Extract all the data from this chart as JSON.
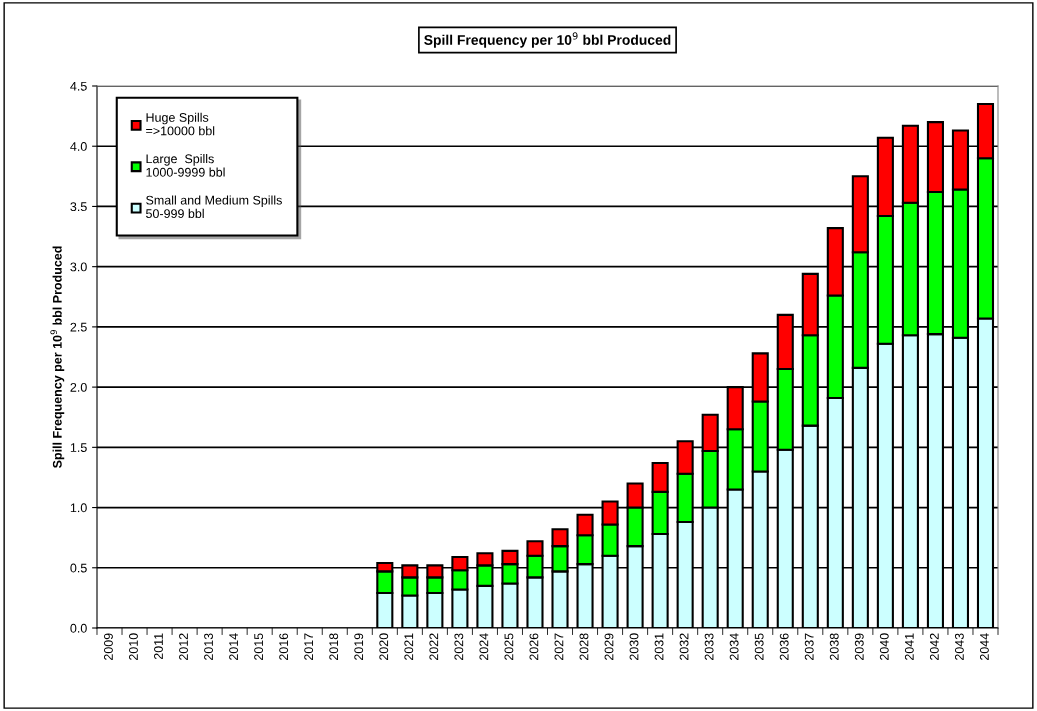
{
  "chart_data": {
    "type": "bar",
    "stacked": true,
    "title": "Spill Frequency per 10$^{9}$ bbl Produced",
    "ylabel": "Spill Frequency per 10$^{9}$ bbl Produced",
    "categories": [
      "2009",
      "2010",
      "2011",
      "2012",
      "2013",
      "2014",
      "2015",
      "2016",
      "2017",
      "2018",
      "2019",
      "2020",
      "2021",
      "2022",
      "2023",
      "2024",
      "2025",
      "2026",
      "2027",
      "2028",
      "2029",
      "2030",
      "2031",
      "2032",
      "2033",
      "2034",
      "2035",
      "2036",
      "2037",
      "2038",
      "2039",
      "2040",
      "2041",
      "2042",
      "2043",
      "2044"
    ],
    "series": [
      {
        "name": "Small and Medium Spills\n50-999 bbl",
        "color": "#ccffff",
        "values": [
          null,
          null,
          null,
          null,
          null,
          null,
          null,
          null,
          null,
          null,
          null,
          0.29,
          0.27,
          0.29,
          0.32,
          0.35,
          0.37,
          0.42,
          0.47,
          0.53,
          0.6,
          0.68,
          0.78,
          0.88,
          1.0,
          1.15,
          1.3,
          1.48,
          1.68,
          1.91,
          2.16,
          2.36,
          2.43,
          2.44,
          2.41,
          2.57
        ]
      },
      {
        "name": "Large  Spills\n1000-9999 bbl",
        "color": "#00ff00",
        "values": [
          null,
          null,
          null,
          null,
          null,
          null,
          null,
          null,
          null,
          null,
          null,
          0.18,
          0.15,
          0.13,
          0.16,
          0.17,
          0.16,
          0.18,
          0.21,
          0.24,
          0.26,
          0.32,
          0.35,
          0.4,
          0.47,
          0.5,
          0.58,
          0.67,
          0.75,
          0.85,
          0.96,
          1.06,
          1.1,
          1.18,
          1.23,
          1.33
        ]
      },
      {
        "name": "Huge Spills\n=>10000 bbl",
        "color": "#ff0000",
        "values": [
          null,
          null,
          null,
          null,
          null,
          null,
          null,
          null,
          null,
          null,
          null,
          0.07,
          0.1,
          0.1,
          0.11,
          0.1,
          0.11,
          0.12,
          0.14,
          0.17,
          0.19,
          0.2,
          0.24,
          0.27,
          0.3,
          0.35,
          0.4,
          0.45,
          0.51,
          0.56,
          0.63,
          0.65,
          0.64,
          0.58,
          0.49,
          0.45
        ]
      }
    ],
    "ylim": [
      0,
      4.5
    ],
    "yticks": [
      {
        "value": 0,
        "label": "0.0"
      },
      {
        "value": 0.5,
        "label": "0.5"
      },
      {
        "value": 1,
        "label": "1.0"
      },
      {
        "value": 1.5,
        "label": "1.5"
      },
      {
        "value": 2,
        "label": "2.0"
      },
      {
        "value": 2.5,
        "label": "2.5"
      },
      {
        "value": 3,
        "label": "3.0"
      },
      {
        "value": 3.5,
        "label": "3.5"
      },
      {
        "value": 4,
        "label": "4.0"
      },
      {
        "value": 4.5,
        "label": "4.5"
      }
    ],
    "grid": "y",
    "legend": "top left"
  }
}
